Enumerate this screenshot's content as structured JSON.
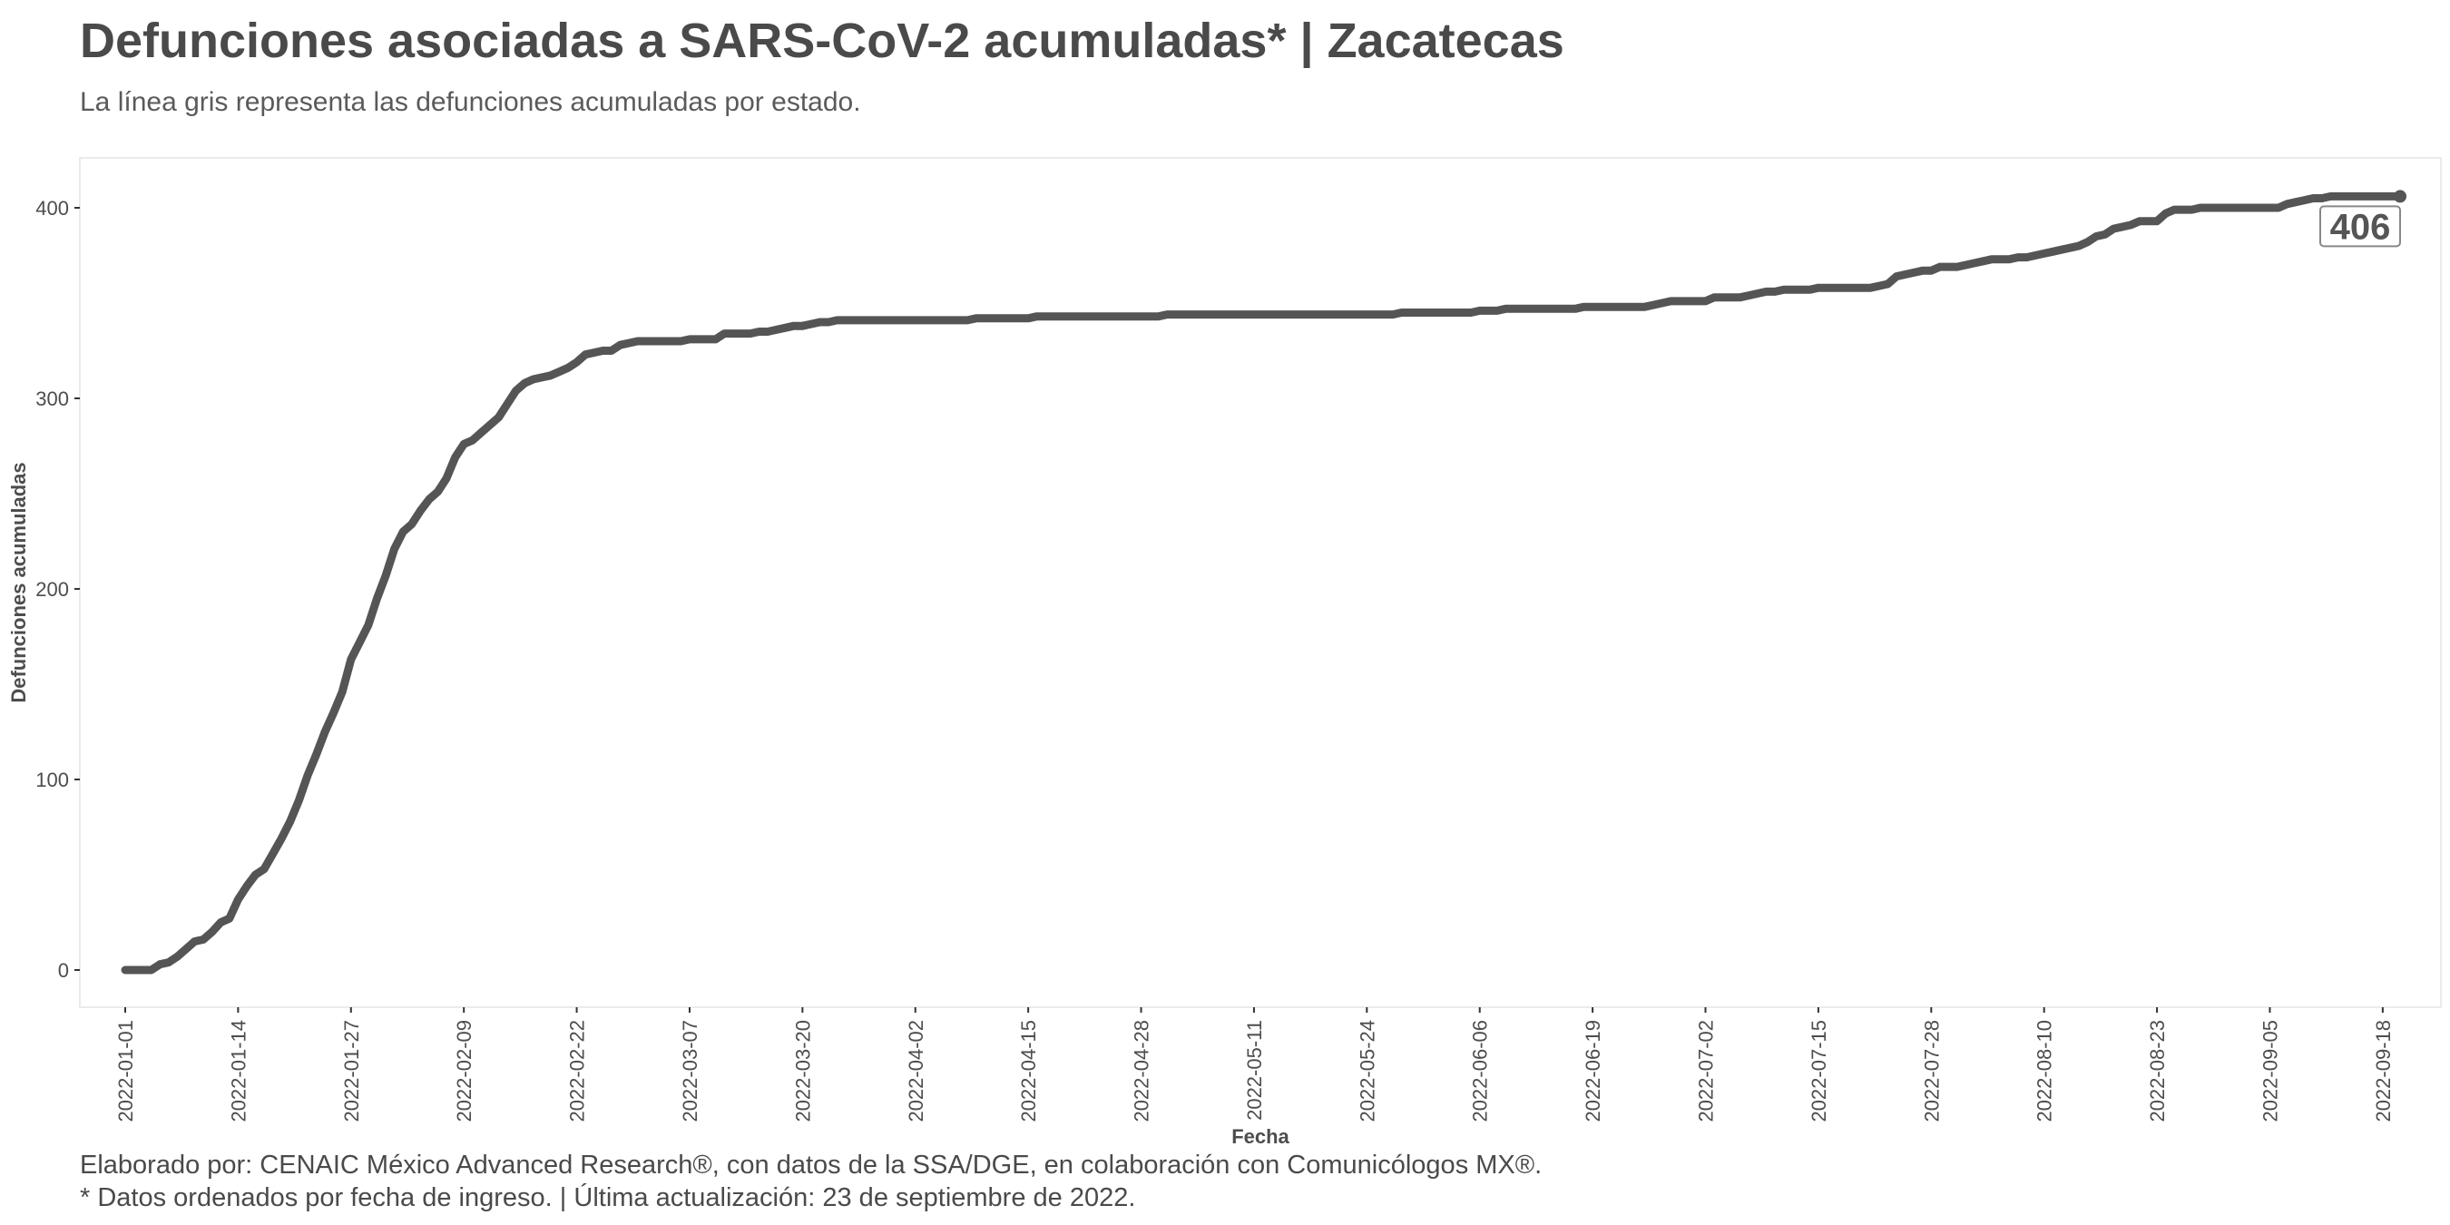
{
  "header": {
    "title": "Defunciones asociadas a SARS-CoV-2 acumuladas* | Zacatecas",
    "subtitle": "La línea gris representa las defunciones acumuladas por estado."
  },
  "footer": {
    "line1": "Elaborado por: CENAIC México Advanced Research®, con datos de la SSA/DGE, en colaboración con Comunicólogos MX®.",
    "line2": "* Datos ordenados por fecha de ingreso. | Última actualización: 23 de septiembre de 2022."
  },
  "chart_data": {
    "type": "line",
    "title": "Defunciones asociadas a SARS-CoV-2 acumuladas* | Zacatecas",
    "xlabel": "Fecha",
    "ylabel": "Defunciones acumuladas",
    "x_range": [
      "2022-01-01",
      "2022-09-20"
    ],
    "ylim": [
      -20,
      425
    ],
    "y_ticks": [
      0,
      100,
      200,
      300,
      400
    ],
    "x_ticks": [
      "2022-01-01",
      "2022-01-14",
      "2022-01-27",
      "2022-02-09",
      "2022-02-22",
      "2022-03-07",
      "2022-03-20",
      "2022-04-02",
      "2022-04-15",
      "2022-04-28",
      "2022-05-11",
      "2022-05-24",
      "2022-06-06",
      "2022-06-19",
      "2022-07-02",
      "2022-07-15",
      "2022-07-28",
      "2022-08-10",
      "2022-08-23",
      "2022-09-05",
      "2022-09-18"
    ],
    "grid": false,
    "line_color": "#555555",
    "end_label": "406",
    "series": [
      {
        "points": [
          [
            "2022-01-01",
            0
          ],
          [
            "2022-01-04",
            0
          ],
          [
            "2022-01-05",
            3
          ],
          [
            "2022-01-06",
            4
          ],
          [
            "2022-01-07",
            7
          ],
          [
            "2022-01-08",
            11
          ],
          [
            "2022-01-09",
            15
          ],
          [
            "2022-01-10",
            16
          ],
          [
            "2022-01-11",
            20
          ],
          [
            "2022-01-12",
            25
          ],
          [
            "2022-01-13",
            27
          ],
          [
            "2022-01-14",
            37
          ],
          [
            "2022-01-15",
            44
          ],
          [
            "2022-01-16",
            50
          ],
          [
            "2022-01-17",
            53
          ],
          [
            "2022-01-18",
            61
          ],
          [
            "2022-01-19",
            69
          ],
          [
            "2022-01-20",
            78
          ],
          [
            "2022-01-21",
            89
          ],
          [
            "2022-01-22",
            102
          ],
          [
            "2022-01-23",
            113
          ],
          [
            "2022-01-24",
            125
          ],
          [
            "2022-01-25",
            135
          ],
          [
            "2022-01-26",
            146
          ],
          [
            "2022-01-27",
            163
          ],
          [
            "2022-01-28",
            172
          ],
          [
            "2022-01-29",
            181
          ],
          [
            "2022-01-30",
            195
          ],
          [
            "2022-01-31",
            207
          ],
          [
            "2022-02-01",
            221
          ],
          [
            "2022-02-02",
            230
          ],
          [
            "2022-02-03",
            234
          ],
          [
            "2022-02-04",
            241
          ],
          [
            "2022-02-05",
            247
          ],
          [
            "2022-02-06",
            251
          ],
          [
            "2022-02-07",
            258
          ],
          [
            "2022-02-08",
            269
          ],
          [
            "2022-02-09",
            276
          ],
          [
            "2022-02-10",
            278
          ],
          [
            "2022-02-11",
            282
          ],
          [
            "2022-02-12",
            286
          ],
          [
            "2022-02-13",
            290
          ],
          [
            "2022-02-14",
            297
          ],
          [
            "2022-02-15",
            304
          ],
          [
            "2022-02-16",
            308
          ],
          [
            "2022-02-17",
            310
          ],
          [
            "2022-02-18",
            311
          ],
          [
            "2022-02-19",
            312
          ],
          [
            "2022-02-20",
            314
          ],
          [
            "2022-02-21",
            316
          ],
          [
            "2022-02-22",
            319
          ],
          [
            "2022-02-23",
            323
          ],
          [
            "2022-02-24",
            324
          ],
          [
            "2022-02-25",
            325
          ],
          [
            "2022-02-26",
            325
          ],
          [
            "2022-02-27",
            328
          ],
          [
            "2022-02-28",
            329
          ],
          [
            "2022-03-01",
            330
          ],
          [
            "2022-03-06",
            330
          ],
          [
            "2022-03-07",
            331
          ],
          [
            "2022-03-10",
            331
          ],
          [
            "2022-03-11",
            334
          ],
          [
            "2022-03-14",
            334
          ],
          [
            "2022-03-15",
            335
          ],
          [
            "2022-03-16",
            335
          ],
          [
            "2022-03-17",
            336
          ],
          [
            "2022-03-18",
            337
          ],
          [
            "2022-03-19",
            338
          ],
          [
            "2022-03-20",
            338
          ],
          [
            "2022-03-21",
            339
          ],
          [
            "2022-03-22",
            340
          ],
          [
            "2022-03-23",
            340
          ],
          [
            "2022-03-24",
            341
          ],
          [
            "2022-04-08",
            341
          ],
          [
            "2022-04-09",
            342
          ],
          [
            "2022-04-15",
            342
          ],
          [
            "2022-04-16",
            343
          ],
          [
            "2022-04-30",
            343
          ],
          [
            "2022-05-01",
            344
          ],
          [
            "2022-05-27",
            344
          ],
          [
            "2022-05-28",
            345
          ],
          [
            "2022-06-05",
            345
          ],
          [
            "2022-06-06",
            346
          ],
          [
            "2022-06-08",
            346
          ],
          [
            "2022-06-09",
            347
          ],
          [
            "2022-06-17",
            347
          ],
          [
            "2022-06-18",
            348
          ],
          [
            "2022-06-25",
            348
          ],
          [
            "2022-06-26",
            349
          ],
          [
            "2022-06-27",
            350
          ],
          [
            "2022-06-28",
            351
          ],
          [
            "2022-07-02",
            351
          ],
          [
            "2022-07-03",
            353
          ],
          [
            "2022-07-06",
            353
          ],
          [
            "2022-07-07",
            354
          ],
          [
            "2022-07-08",
            355
          ],
          [
            "2022-07-09",
            356
          ],
          [
            "2022-07-10",
            356
          ],
          [
            "2022-07-11",
            357
          ],
          [
            "2022-07-14",
            357
          ],
          [
            "2022-07-15",
            358
          ],
          [
            "2022-07-21",
            358
          ],
          [
            "2022-07-22",
            359
          ],
          [
            "2022-07-23",
            360
          ],
          [
            "2022-07-24",
            364
          ],
          [
            "2022-07-25",
            365
          ],
          [
            "2022-07-26",
            366
          ],
          [
            "2022-07-27",
            367
          ],
          [
            "2022-07-28",
            367
          ],
          [
            "2022-07-29",
            369
          ],
          [
            "2022-07-31",
            369
          ],
          [
            "2022-08-01",
            370
          ],
          [
            "2022-08-02",
            371
          ],
          [
            "2022-08-03",
            372
          ],
          [
            "2022-08-04",
            373
          ],
          [
            "2022-08-06",
            373
          ],
          [
            "2022-08-07",
            374
          ],
          [
            "2022-08-08",
            374
          ],
          [
            "2022-08-09",
            375
          ],
          [
            "2022-08-10",
            376
          ],
          [
            "2022-08-11",
            377
          ],
          [
            "2022-08-12",
            378
          ],
          [
            "2022-08-13",
            379
          ],
          [
            "2022-08-14",
            380
          ],
          [
            "2022-08-15",
            382
          ],
          [
            "2022-08-16",
            385
          ],
          [
            "2022-08-17",
            386
          ],
          [
            "2022-08-18",
            389
          ],
          [
            "2022-08-19",
            390
          ],
          [
            "2022-08-20",
            391
          ],
          [
            "2022-08-21",
            393
          ],
          [
            "2022-08-23",
            393
          ],
          [
            "2022-08-24",
            397
          ],
          [
            "2022-08-25",
            399
          ],
          [
            "2022-08-27",
            399
          ],
          [
            "2022-08-28",
            400
          ],
          [
            "2022-09-06",
            400
          ],
          [
            "2022-09-07",
            402
          ],
          [
            "2022-09-08",
            403
          ],
          [
            "2022-09-09",
            404
          ],
          [
            "2022-09-10",
            405
          ],
          [
            "2022-09-11",
            405
          ],
          [
            "2022-09-12",
            406
          ],
          [
            "2022-09-20",
            406
          ]
        ]
      }
    ]
  }
}
